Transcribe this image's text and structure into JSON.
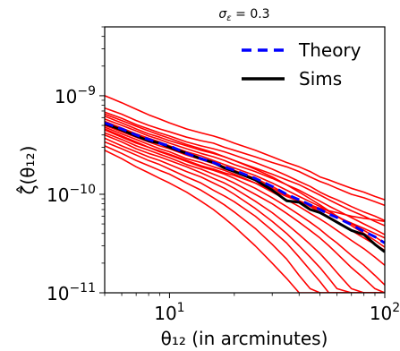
{
  "chart_data": {
    "type": "line",
    "title": "σ_ε = 0.3",
    "xlabel": "θ₁₂ (in arcminutes)",
    "ylabel": "ζ̂(θ₁₂)",
    "xscale": "log",
    "yscale": "log",
    "xlim": [
      5,
      100
    ],
    "ylim": [
      1e-11,
      5e-09
    ],
    "x_ticks": [
      {
        "value": 10,
        "base": "10",
        "exp": "1"
      },
      {
        "value": 100,
        "base": "10",
        "exp": "2"
      }
    ],
    "y_ticks": [
      {
        "value": 1e-11,
        "base": "10",
        "exp": "−11"
      },
      {
        "value": 1e-10,
        "base": "10",
        "exp": "−10"
      },
      {
        "value": 1e-09,
        "base": "10",
        "exp": "−9"
      }
    ],
    "grid": false,
    "legend_position": "top-right",
    "x": [
      5,
      6,
      7,
      8,
      9,
      10,
      12,
      14,
      16,
      18,
      20,
      25,
      30,
      35,
      40,
      45,
      50,
      55,
      60,
      70,
      80,
      90,
      100
    ],
    "series": [
      {
        "name": "Theory",
        "color": "#0000ff",
        "style": "dashed",
        "values": [
          5.3e-10,
          4.6e-10,
          4e-10,
          3.6e-10,
          3.3e-10,
          3.1e-10,
          2.6e-10,
          2.3e-10,
          2.1e-10,
          1.9e-10,
          1.75e-10,
          1.45e-10,
          1.2e-10,
          1e-10,
          8.8e-11,
          7.8e-11,
          7e-11,
          6.3e-11,
          5.8e-11,
          4.9e-11,
          4.2e-11,
          3.7e-11,
          3.2e-11
        ]
      },
      {
        "name": "Sims",
        "color": "#000000",
        "style": "solid",
        "values": [
          5.2e-10,
          4.5e-10,
          3.9e-10,
          3.5e-10,
          3.3e-10,
          3e-10,
          2.6e-10,
          2.3e-10,
          2.1e-10,
          1.85e-10,
          1.7e-10,
          1.4e-10,
          1.1e-10,
          8.6e-11,
          8.3e-11,
          7e-11,
          6.5e-11,
          5.8e-11,
          5.2e-11,
          4.3e-11,
          3.9e-11,
          3.1e-11,
          2.6e-11
        ]
      }
    ],
    "realizations": {
      "color": "#ff0000",
      "curves": [
        [
          1e-09,
          8.5e-10,
          7.3e-10,
          6.4e-10,
          5.8e-10,
          5.3e-10,
          4.6e-10,
          4.2e-10,
          3.9e-10,
          3.6e-10,
          3.3e-10,
          2.8e-10,
          2.4e-10,
          2.1e-10,
          1.9e-10,
          1.7e-10,
          1.5e-10,
          1.4e-10,
          1.3e-10,
          1.15e-10,
          1.05e-10,
          9.5e-11,
          8.8e-11
        ],
        [
          7.5e-10,
          6.5e-10,
          5.6e-10,
          5e-10,
          4.6e-10,
          4.3e-10,
          3.8e-10,
          3.5e-10,
          3.3e-10,
          3e-10,
          2.8e-10,
          2.4e-10,
          2.1e-10,
          1.9e-10,
          1.7e-10,
          1.5e-10,
          1.35e-10,
          1.25e-10,
          1.15e-10,
          1e-10,
          9.2e-11,
          8.4e-11,
          7.7e-11
        ],
        [
          6.8e-10,
          5.9e-10,
          5.1e-10,
          4.6e-10,
          4.2e-10,
          3.9e-10,
          3.4e-10,
          3.1e-10,
          2.9e-10,
          2.7e-10,
          2.5e-10,
          2.1e-10,
          1.8e-10,
          1.55e-10,
          1.35e-10,
          1.2e-10,
          1.05e-10,
          9.5e-11,
          8.8e-11,
          7.5e-11,
          6.6e-11,
          6e-11,
          5.4e-11
        ],
        [
          6.2e-10,
          5.3e-10,
          4.6e-10,
          4.1e-10,
          3.8e-10,
          3.5e-10,
          3.1e-10,
          2.8e-10,
          2.6e-10,
          2.4e-10,
          2.2e-10,
          1.85e-10,
          1.6e-10,
          1.4e-10,
          1.25e-10,
          1.1e-10,
          9.8e-11,
          8.8e-11,
          8e-11,
          6.8e-11,
          6e-11,
          5.3e-11,
          4.8e-11
        ],
        [
          5.8e-10,
          5e-10,
          4.4e-10,
          3.9e-10,
          3.6e-10,
          3.3e-10,
          2.9e-10,
          2.6e-10,
          2.4e-10,
          2.2e-10,
          2e-10,
          1.7e-10,
          1.45e-10,
          1.25e-10,
          1.1e-10,
          9.6e-11,
          8.5e-11,
          7.6e-11,
          6.9e-11,
          5.8e-11,
          5e-11,
          4.4e-11,
          3.9e-11
        ],
        [
          5.5e-10,
          4.7e-10,
          4.1e-10,
          3.7e-10,
          3.4e-10,
          3.1e-10,
          2.7e-10,
          2.45e-10,
          2.2e-10,
          2e-10,
          1.85e-10,
          1.55e-10,
          1.3e-10,
          1.1e-10,
          9.5e-11,
          8.4e-11,
          7.5e-11,
          6.7e-11,
          6e-11,
          5e-11,
          4.3e-11,
          3.7e-11,
          3.2e-11
        ],
        [
          5e-10,
          4.3e-10,
          3.8e-10,
          3.4e-10,
          3.1e-10,
          2.9e-10,
          2.5e-10,
          2.25e-10,
          2.05e-10,
          1.9e-10,
          1.75e-10,
          1.45e-10,
          1.2e-10,
          1e-10,
          8.6e-11,
          7.5e-11,
          6.6e-11,
          5.9e-11,
          5.3e-11,
          4.3e-11,
          3.6e-11,
          3.1e-11,
          2.7e-11
        ],
        [
          4.8e-10,
          4.1e-10,
          3.6e-10,
          3.2e-10,
          2.9e-10,
          2.7e-10,
          2.3e-10,
          2.1e-10,
          1.9e-10,
          1.75e-10,
          1.6e-10,
          1.3e-10,
          1.05e-10,
          8.8e-11,
          7.5e-11,
          6.4e-11,
          5.6e-11,
          4.9e-11,
          4.3e-11,
          3.4e-11,
          2.8e-11,
          2.3e-11,
          1.9e-11
        ],
        [
          4.5e-10,
          3.8e-10,
          3.3e-10,
          3e-10,
          2.7e-10,
          2.5e-10,
          2.15e-10,
          1.9e-10,
          1.75e-10,
          1.6e-10,
          1.45e-10,
          1.15e-10,
          9.2e-11,
          7.5e-11,
          6.2e-11,
          5.2e-11,
          4.4e-11,
          3.7e-11,
          3.2e-11,
          2.4e-11,
          1.9e-11,
          1.5e-11,
          1.2e-11
        ],
        [
          4.2e-10,
          3.6e-10,
          3.1e-10,
          2.8e-10,
          2.55e-10,
          2.35e-10,
          2e-10,
          1.8e-10,
          1.6e-10,
          1.45e-10,
          1.3e-10,
          1e-10,
          8e-11,
          6.4e-11,
          5.2e-11,
          4.3e-11,
          3.6e-11,
          3e-11,
          2.5e-11,
          1.8e-11,
          1.4e-11,
          1.1e-11,
          1e-11
        ],
        [
          4e-10,
          3.4e-10,
          2.9e-10,
          2.6e-10,
          2.4e-10,
          2.2e-10,
          1.9e-10,
          1.65e-10,
          1.45e-10,
          1.3e-10,
          1.15e-10,
          8.5e-11,
          6.5e-11,
          5e-11,
          3.9e-11,
          3.1e-11,
          2.5e-11,
          2e-11,
          1.6e-11,
          1.1e-11,
          1e-11,
          1e-11,
          1e-11
        ],
        [
          3.7e-10,
          3.1e-10,
          2.7e-10,
          2.4e-10,
          2.2e-10,
          2e-10,
          1.7e-10,
          1.5e-10,
          1.3e-10,
          1.15e-10,
          1e-10,
          7.2e-11,
          5.3e-11,
          4e-11,
          3e-11,
          2.3e-11,
          1.8e-11,
          1.4e-11,
          1.1e-11,
          1e-11,
          1e-11,
          1e-11,
          1e-11
        ],
        [
          3.4e-10,
          2.9e-10,
          2.5e-10,
          2.2e-10,
          2e-10,
          1.8e-10,
          1.5e-10,
          1.3e-10,
          1.1e-10,
          9.6e-11,
          8.4e-11,
          6e-11,
          4.3e-11,
          3.2e-11,
          2.3e-11,
          1.7e-11,
          1.3e-11,
          1e-11,
          1e-11,
          1e-11,
          1e-11,
          1e-11,
          1e-11
        ],
        [
          3.1e-10,
          2.6e-10,
          2.2e-10,
          1.95e-10,
          1.75e-10,
          1.6e-10,
          1.3e-10,
          1.1e-10,
          9.2e-11,
          7.8e-11,
          6.6e-11,
          4.5e-11,
          3.1e-11,
          2.2e-11,
          1.5e-11,
          1.1e-11,
          1e-11,
          1e-11,
          1e-11,
          1e-11,
          1e-11,
          1e-11,
          1e-11
        ],
        [
          2.8e-10,
          2.3e-10,
          1.9e-10,
          1.65e-10,
          1.45e-10,
          1.3e-10,
          1.05e-10,
          8.5e-11,
          7e-11,
          5.7e-11,
          4.7e-11,
          3e-11,
          2e-11,
          1.4e-11,
          1e-11,
          1e-11,
          1e-11,
          1e-11,
          1e-11,
          1e-11,
          1e-11,
          1e-11,
          1e-11
        ],
        [
          6.5e-10,
          5.6e-10,
          4.9e-10,
          4.4e-10,
          4e-10,
          3.7e-10,
          3.2e-10,
          2.9e-10,
          2.65e-10,
          2.4e-10,
          2.2e-10,
          1.8e-10,
          1.5e-10,
          1.25e-10,
          1.05e-10,
          9e-11,
          7.8e-11,
          6.8e-11,
          6e-11,
          4.8e-11,
          4e-11,
          3.4e-11,
          2.9e-11
        ],
        [
          5.3e-10,
          4.6e-10,
          4e-10,
          3.6e-10,
          3.3e-10,
          3e-10,
          2.6e-10,
          2.3e-10,
          2.1e-10,
          1.9e-10,
          1.7e-10,
          1.4e-10,
          1.15e-10,
          9.8e-11,
          8.6e-11,
          7.8e-11,
          7.2e-11,
          6.8e-11,
          6.5e-11,
          6e-11,
          5.7e-11,
          5.5e-11,
          5.3e-11
        ],
        [
          4.6e-10,
          3.9e-10,
          3.4e-10,
          3e-10,
          2.75e-10,
          2.55e-10,
          2.2e-10,
          1.95e-10,
          1.8e-10,
          1.65e-10,
          1.55e-10,
          1.3e-10,
          1.1e-10,
          9.5e-11,
          8.5e-11,
          7.6e-11,
          7e-11,
          6.4e-11,
          5.9e-11,
          5.1e-11,
          4.5e-11,
          4e-11,
          3.6e-11
        ]
      ]
    }
  }
}
